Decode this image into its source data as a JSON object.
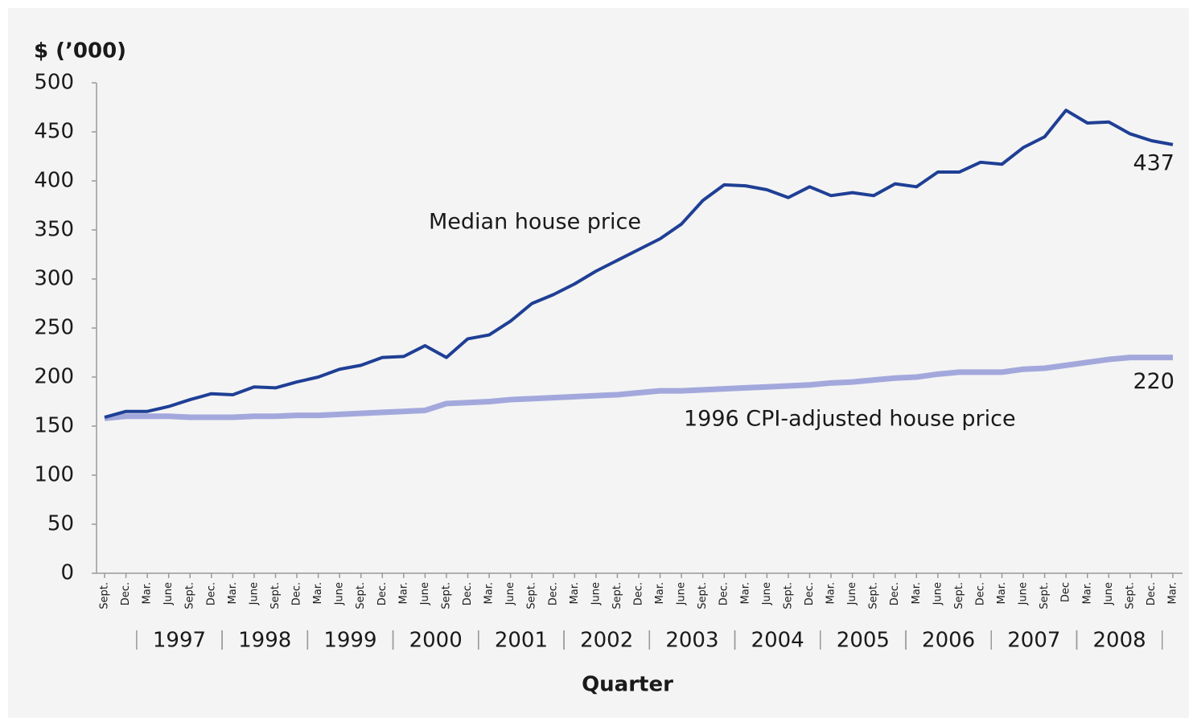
{
  "chart_data": {
    "type": "line",
    "y_axis_label": "$ (’000)",
    "x_axis_label": "Quarter",
    "categories": [
      "Sept.",
      "Dec.",
      "Mar.",
      "June",
      "Sept.",
      "Dec.",
      "Mar.",
      "June",
      "Sept.",
      "Dec.",
      "Mar.",
      "June",
      "Sept.",
      "Dec.",
      "Mar.",
      "June",
      "Sept.",
      "Dec.",
      "Mar.",
      "June",
      "Sept.",
      "Dec.",
      "Mar.",
      "June",
      "Sept.",
      "Dec.",
      "Mar.",
      "June",
      "Sept.",
      "Dec.",
      "Mar.",
      "June",
      "Sept.",
      "Dec.",
      "Mar.",
      "June",
      "Sept.",
      "Dec.",
      "Mar.",
      "June",
      "Sept.",
      "Dec.",
      "Mar.",
      "June",
      "Sept.",
      "Dec",
      "Mar.",
      "June",
      "Sept.",
      "Dec.",
      "Mar."
    ],
    "year_labels": [
      "1997",
      "1998",
      "1999",
      "2000",
      "2001",
      "2002",
      "2003",
      "2004",
      "2005",
      "2006",
      "2007",
      "2008"
    ],
    "series": [
      {
        "name": "Median house price",
        "color": "#1f3f95",
        "values": [
          159,
          165,
          165,
          170,
          177,
          183,
          182,
          190,
          189,
          195,
          200,
          208,
          212,
          220,
          221,
          232,
          220,
          239,
          243,
          257,
          275,
          284,
          295,
          308,
          319,
          330,
          341,
          356,
          380,
          396,
          395,
          391,
          383,
          394,
          385,
          388,
          385,
          397,
          394,
          409,
          409,
          419,
          417,
          434,
          445,
          472,
          459,
          460,
          448,
          441,
          437
        ]
      },
      {
        "name": "1996 CPI-adjusted house price",
        "color": "#a3a8dc",
        "values": [
          158,
          160,
          160,
          160,
          159,
          159,
          159,
          160,
          160,
          161,
          161,
          162,
          163,
          164,
          165,
          166,
          173,
          174,
          175,
          177,
          178,
          179,
          180,
          181,
          182,
          184,
          186,
          186,
          187,
          188,
          189,
          190,
          191,
          192,
          194,
          195,
          197,
          199,
          200,
          203,
          205,
          205,
          205,
          208,
          209,
          212,
          215,
          218,
          220,
          220,
          220
        ]
      }
    ],
    "ylim": [
      0,
      500
    ],
    "yticks": [
      0,
      50,
      100,
      150,
      200,
      250,
      300,
      350,
      400,
      450,
      500
    ]
  }
}
